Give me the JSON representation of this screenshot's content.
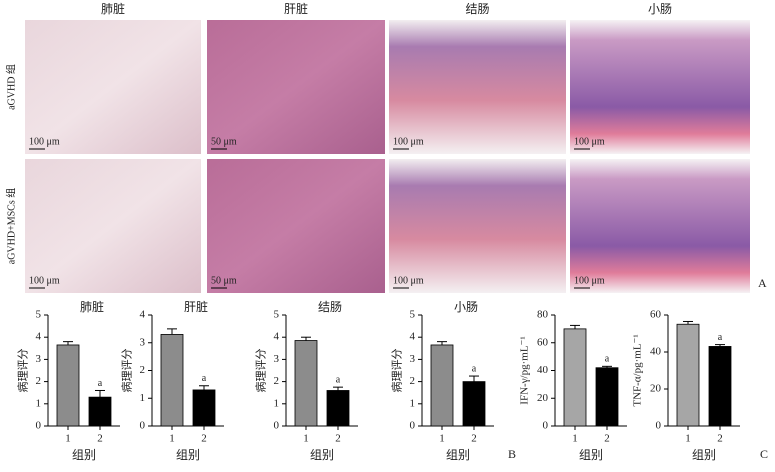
{
  "panel_a": {
    "columns": [
      "肺脏",
      "肝脏",
      "结肠",
      "小肠"
    ],
    "rows": [
      "aGVHD 组",
      "aGVHD+MSCs 组"
    ],
    "scale_bars": [
      [
        "100 μm",
        "50 μm",
        "100 μm",
        "100 μm"
      ],
      [
        "100 μm",
        "50 μm",
        "100 μm",
        "100 μm"
      ]
    ],
    "label": "A"
  },
  "panel_b_label": "B",
  "panel_c_label": "C",
  "chart_data": [
    {
      "type": "bar",
      "title": "肺脏",
      "xlabel": "组别",
      "ylabel": "病理评分",
      "categories": [
        "1",
        "2"
      ],
      "values": [
        3.65,
        1.3
      ],
      "errors": [
        0.15,
        0.3
      ],
      "sig_labels": [
        null,
        "a"
      ],
      "colors": [
        "#8c8c8c",
        "#000000"
      ],
      "ylim": [
        0,
        5
      ],
      "yticks": [
        0,
        1,
        2,
        3,
        4,
        5
      ]
    },
    {
      "type": "bar",
      "title": "肝脏",
      "xlabel": "组别",
      "ylabel": "病理评分",
      "categories": [
        "1",
        "2"
      ],
      "values": [
        3.3,
        1.3
      ],
      "errors": [
        0.2,
        0.15
      ],
      "sig_labels": [
        null,
        "a"
      ],
      "colors": [
        "#8c8c8c",
        "#000000"
      ],
      "ylim": [
        0,
        4
      ],
      "yticks": [
        0,
        1,
        2,
        3,
        4
      ]
    },
    {
      "type": "bar",
      "title": "结肠",
      "xlabel": "组别",
      "ylabel": "病理评分",
      "categories": [
        "1",
        "2"
      ],
      "values": [
        3.85,
        1.6
      ],
      "errors": [
        0.15,
        0.15
      ],
      "sig_labels": [
        null,
        "a"
      ],
      "colors": [
        "#8c8c8c",
        "#000000"
      ],
      "ylim": [
        0,
        5
      ],
      "yticks": [
        0,
        1,
        2,
        3,
        4,
        5
      ]
    },
    {
      "type": "bar",
      "title": "小肠",
      "xlabel": "组别",
      "ylabel": "病理评分",
      "categories": [
        "1",
        "2"
      ],
      "values": [
        3.65,
        2.0
      ],
      "errors": [
        0.15,
        0.25
      ],
      "sig_labels": [
        null,
        "a"
      ],
      "colors": [
        "#8c8c8c",
        "#000000"
      ],
      "ylim": [
        0,
        5
      ],
      "yticks": [
        0,
        1,
        2,
        3,
        4,
        5
      ]
    },
    {
      "type": "bar",
      "xlabel": "组别",
      "ylabel": "IFN-γ/pg·mL⁻¹",
      "categories": [
        "1",
        "2"
      ],
      "values": [
        70,
        42
      ],
      "errors": [
        2.5,
        1
      ],
      "sig_labels": [
        null,
        "a"
      ],
      "colors": [
        "#a6a6a6",
        "#000000"
      ],
      "ylim": [
        0,
        80
      ],
      "yticks": [
        0,
        20,
        40,
        60,
        80
      ]
    },
    {
      "type": "bar",
      "xlabel": "组别",
      "ylabel": "TNF-α/pg·mL⁻¹",
      "categories": [
        "1",
        "2"
      ],
      "values": [
        55,
        43
      ],
      "errors": [
        1.5,
        1
      ],
      "sig_labels": [
        null,
        "a"
      ],
      "colors": [
        "#a6a6a6",
        "#000000"
      ],
      "ylim": [
        0,
        60
      ],
      "yticks": [
        0,
        20,
        40,
        60
      ]
    }
  ]
}
